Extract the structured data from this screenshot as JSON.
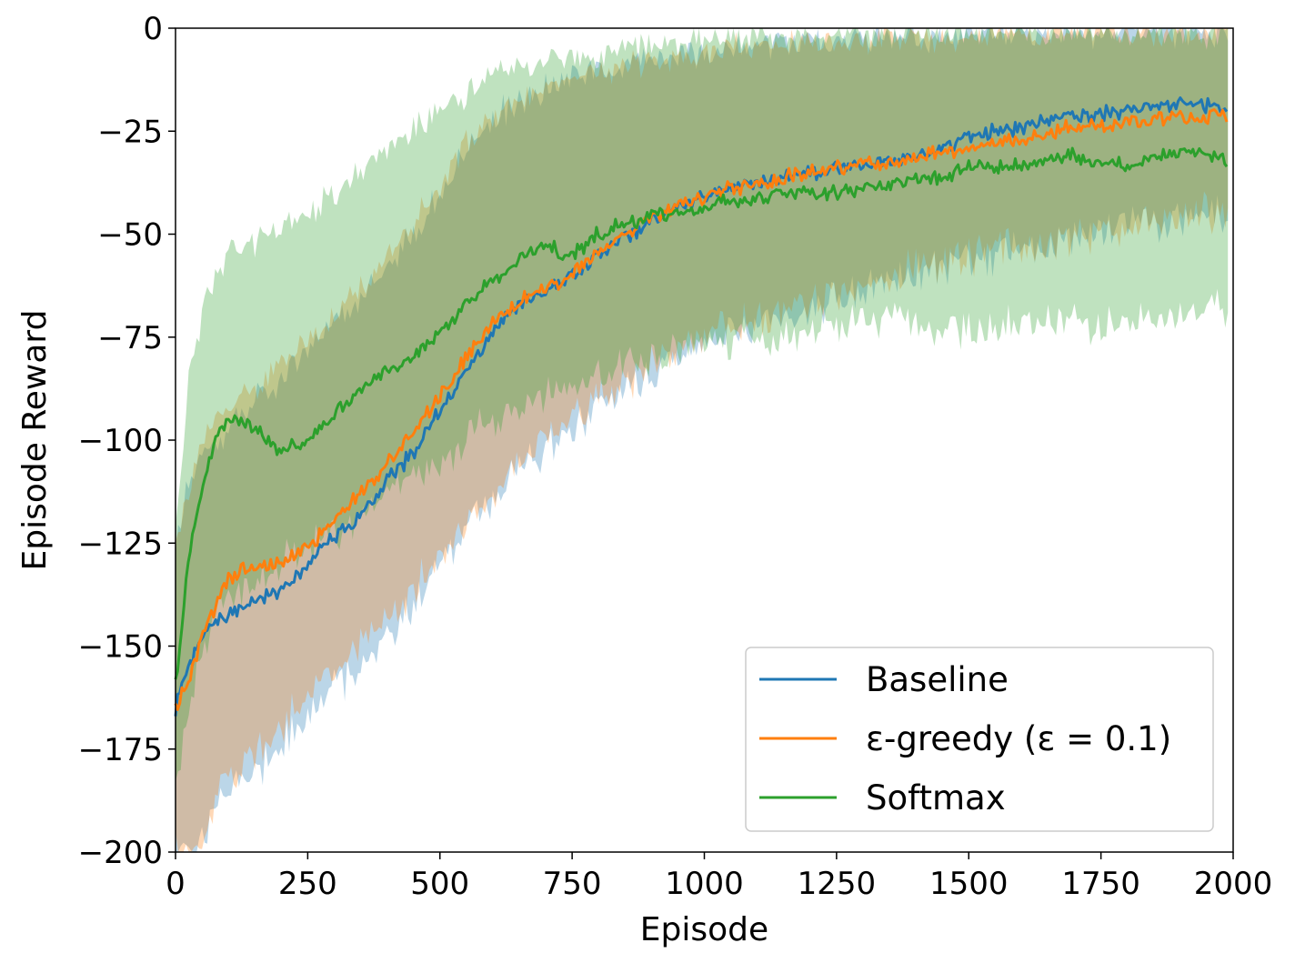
{
  "chart_data": {
    "type": "line",
    "xlabel": "Episode",
    "ylabel": "Episode Reward",
    "xlim": [
      0,
      2000
    ],
    "ylim": [
      -200,
      0
    ],
    "x_ticks": [
      0,
      250,
      500,
      750,
      1000,
      1250,
      1500,
      1750,
      2000
    ],
    "x_tick_labels": [
      "0",
      "250",
      "500",
      "750",
      "1000",
      "1250",
      "1500",
      "1750",
      "2000"
    ],
    "y_ticks": [
      0,
      -25,
      -50,
      -75,
      -100,
      -125,
      -150,
      -175,
      -200
    ],
    "y_tick_labels": [
      "0",
      "−25",
      "−50",
      "−75",
      "−100",
      "−125",
      "−150",
      "−175",
      "−200"
    ],
    "grid": false,
    "legend_position": "bottom-right",
    "x": [
      0,
      25,
      50,
      75,
      100,
      150,
      200,
      250,
      300,
      350,
      400,
      450,
      500,
      550,
      600,
      650,
      700,
      750,
      800,
      850,
      900,
      950,
      1000,
      1050,
      1100,
      1150,
      1200,
      1250,
      1300,
      1350,
      1400,
      1450,
      1500,
      1550,
      1600,
      1650,
      1700,
      1750,
      1800,
      1850,
      1900,
      1950,
      1990
    ],
    "series": [
      {
        "name": "Baseline",
        "color": "#1f77b4",
        "mean": [
          -165,
          -155,
          -148,
          -145,
          -142,
          -139,
          -136,
          -130,
          -124,
          -118,
          -110,
          -103,
          -93,
          -83,
          -74,
          -67,
          -64,
          -60,
          -55,
          -51,
          -47,
          -43,
          -41,
          -39,
          -37,
          -36,
          -35,
          -34,
          -33,
          -32,
          -31,
          -29,
          -27,
          -25,
          -24,
          -22,
          -21,
          -21,
          -20,
          -19,
          -18,
          -19,
          -20
        ],
        "upper": [
          -125,
          -110,
          -105,
          -100,
          -98,
          -90,
          -85,
          -78,
          -72,
          -65,
          -58,
          -50,
          -40,
          -30,
          -22,
          -18,
          -15,
          -12,
          -10,
          -9,
          -8,
          -7,
          -6,
          -5,
          -4,
          -4,
          -3,
          -3,
          -3,
          -2,
          -2,
          -2,
          -2,
          -1,
          -1,
          -1,
          -1,
          -1,
          -1,
          -1,
          -1,
          -1,
          -1
        ],
        "lower": [
          -200,
          -200,
          -198,
          -190,
          -185,
          -180,
          -175,
          -168,
          -160,
          -155,
          -148,
          -140,
          -130,
          -122,
          -115,
          -108,
          -103,
          -98,
          -92,
          -88,
          -84,
          -80,
          -77,
          -74,
          -72,
          -70,
          -68,
          -66,
          -64,
          -62,
          -60,
          -58,
          -56,
          -55,
          -53,
          -52,
          -50,
          -49,
          -48,
          -47,
          -46,
          -45,
          -45
        ]
      },
      {
        "name": "ε-greedy (ε = 0.1)",
        "color": "#ff7f0e",
        "mean": [
          -165,
          -158,
          -148,
          -140,
          -133,
          -131,
          -130,
          -126,
          -120,
          -113,
          -106,
          -98,
          -89,
          -80,
          -72,
          -66,
          -63,
          -60,
          -54,
          -50,
          -46,
          -43,
          -41,
          -39,
          -38,
          -36,
          -35,
          -34,
          -33,
          -33,
          -31,
          -30,
          -29,
          -28,
          -27,
          -25,
          -24,
          -24,
          -23,
          -22,
          -21,
          -22,
          -21
        ],
        "upper": [
          -125,
          -112,
          -100,
          -95,
          -92,
          -88,
          -82,
          -76,
          -70,
          -63,
          -56,
          -48,
          -38,
          -28,
          -21,
          -17,
          -14,
          -12,
          -10,
          -9,
          -8,
          -7,
          -6,
          -5,
          -4,
          -4,
          -3,
          -3,
          -3,
          -2,
          -2,
          -2,
          -2,
          -1,
          -1,
          -1,
          -1,
          -1,
          -1,
          -1,
          -1,
          -1,
          -1
        ],
        "lower": [
          -200,
          -200,
          -198,
          -188,
          -182,
          -176,
          -170,
          -162,
          -156,
          -150,
          -143,
          -136,
          -128,
          -120,
          -112,
          -106,
          -100,
          -95,
          -90,
          -86,
          -82,
          -78,
          -75,
          -72,
          -70,
          -68,
          -66,
          -64,
          -62,
          -60,
          -58,
          -57,
          -56,
          -54,
          -53,
          -52,
          -50,
          -49,
          -48,
          -47,
          -46,
          -45,
          -45
        ]
      },
      {
        "name": "Softmax",
        "color": "#2ca02c",
        "mean": [
          -160,
          -128,
          -112,
          -100,
          -95,
          -97,
          -103,
          -100,
          -94,
          -88,
          -83,
          -80,
          -74,
          -67,
          -61,
          -56,
          -53,
          -55,
          -50,
          -47,
          -46,
          -45,
          -44,
          -42,
          -41,
          -40,
          -40,
          -40,
          -39,
          -38,
          -37,
          -36,
          -34,
          -34,
          -33,
          -32,
          -31,
          -33,
          -33,
          -31,
          -30,
          -30,
          -32
        ],
        "upper": [
          -120,
          -85,
          -70,
          -60,
          -55,
          -52,
          -48,
          -45,
          -40,
          -34,
          -28,
          -24,
          -20,
          -16,
          -12,
          -10,
          -8,
          -7,
          -6,
          -5,
          -4,
          -3,
          -3,
          -2,
          -2,
          -2,
          -2,
          -1,
          -1,
          -1,
          -1,
          -1,
          -1,
          -1,
          -1,
          -1,
          -1,
          -1,
          -1,
          -1,
          -1,
          -1,
          -1
        ],
        "lower": [
          -185,
          -165,
          -150,
          -142,
          -138,
          -135,
          -130,
          -126,
          -122,
          -118,
          -112,
          -108,
          -105,
          -100,
          -96,
          -92,
          -90,
          -86,
          -84,
          -82,
          -80,
          -78,
          -77,
          -76,
          -75,
          -74,
          -73,
          -72,
          -71,
          -71,
          -72,
          -73,
          -74,
          -72,
          -71,
          -72,
          -71,
          -73,
          -71,
          -70,
          -69,
          -69,
          -68
        ]
      }
    ]
  }
}
